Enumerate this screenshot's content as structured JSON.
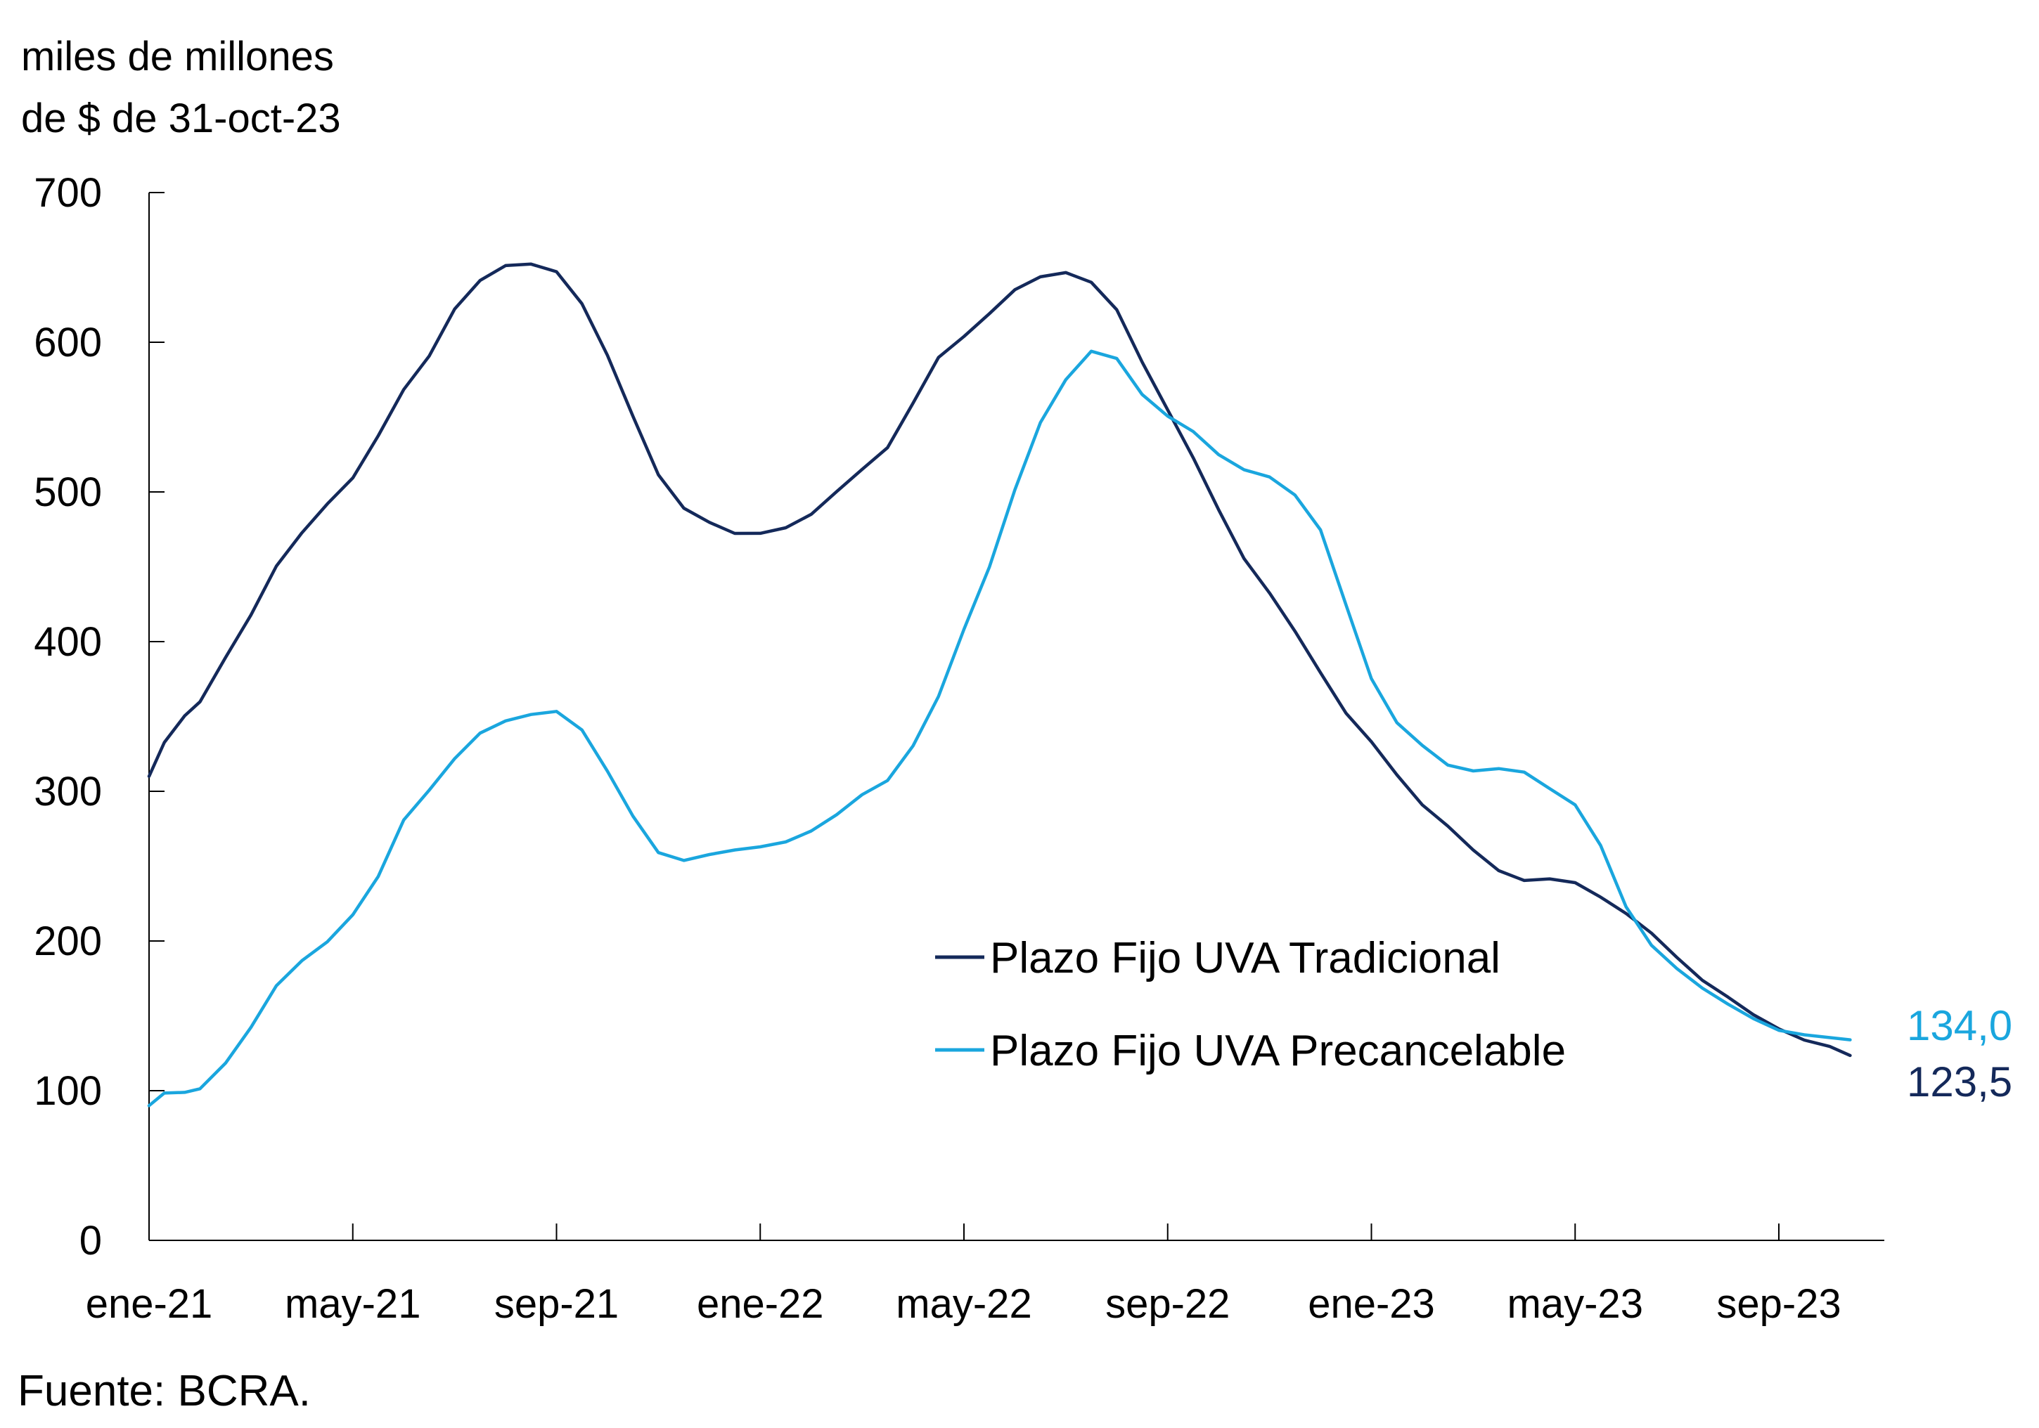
{
  "chart_data": {
    "type": "line",
    "title": "",
    "ylabel_line1": "miles de millones",
    "ylabel_line2": "de $ de 31-oct-23",
    "ylim": [
      0,
      700
    ],
    "yticks": [
      "0",
      "100",
      "200",
      "300",
      "400",
      "500",
      "600",
      "700"
    ],
    "x_tick_labels": [
      "ene-21",
      "may-21",
      "sep-21",
      "ene-22",
      "may-22",
      "sep-22",
      "ene-23",
      "may-23",
      "sep-23"
    ],
    "x_range_months": [
      0,
      34
    ],
    "legend_position": "center-right",
    "series": [
      {
        "name": "Plazo Fijo UVA Tradicional",
        "color": "#14295a",
        "end_label": "123,5",
        "points": [
          [
            0.0,
            310
          ],
          [
            0.3,
            330
          ],
          [
            0.7,
            348
          ],
          [
            1.0,
            360
          ],
          [
            1.5,
            392
          ],
          [
            2.0,
            420
          ],
          [
            2.5,
            450
          ],
          [
            3.0,
            470
          ],
          [
            3.5,
            490
          ],
          [
            4.0,
            510
          ],
          [
            4.5,
            540
          ],
          [
            5.0,
            570
          ],
          [
            5.5,
            590
          ],
          [
            6.0,
            620
          ],
          [
            6.5,
            640
          ],
          [
            7.0,
            652
          ],
          [
            7.5,
            654
          ],
          [
            8.0,
            648
          ],
          [
            8.5,
            625
          ],
          [
            9.0,
            590
          ],
          [
            9.5,
            550
          ],
          [
            10.0,
            512
          ],
          [
            10.5,
            490
          ],
          [
            11.0,
            480
          ],
          [
            11.5,
            472
          ],
          [
            12.0,
            472
          ],
          [
            12.5,
            476
          ],
          [
            13.0,
            485
          ],
          [
            13.5,
            500
          ],
          [
            14.0,
            515
          ],
          [
            14.5,
            530
          ],
          [
            15.0,
            560
          ],
          [
            15.5,
            590
          ],
          [
            16.0,
            603
          ],
          [
            16.5,
            618
          ],
          [
            17.0,
            635
          ],
          [
            17.5,
            645
          ],
          [
            18.0,
            648
          ],
          [
            18.5,
            640
          ],
          [
            19.0,
            620
          ],
          [
            19.5,
            585
          ],
          [
            20.0,
            555
          ],
          [
            20.5,
            525
          ],
          [
            21.0,
            490
          ],
          [
            21.5,
            455
          ],
          [
            22.0,
            430
          ],
          [
            22.5,
            405
          ],
          [
            23.0,
            380
          ],
          [
            23.5,
            355
          ],
          [
            24.0,
            335
          ],
          [
            24.5,
            310
          ],
          [
            25.0,
            288
          ],
          [
            25.5,
            275
          ],
          [
            26.0,
            262
          ],
          [
            26.5,
            250
          ],
          [
            27.0,
            242
          ],
          [
            27.5,
            240
          ],
          [
            28.0,
            236
          ],
          [
            28.5,
            228
          ],
          [
            29.0,
            220
          ],
          [
            29.5,
            208
          ],
          [
            30.0,
            190
          ],
          [
            30.5,
            172
          ],
          [
            31.0,
            160
          ],
          [
            31.5,
            150
          ],
          [
            32.0,
            143
          ],
          [
            32.5,
            136
          ],
          [
            33.0,
            130
          ],
          [
            33.4,
            123.5
          ]
        ]
      },
      {
        "name": "Plazo Fijo UVA Precancelable",
        "color": "#1aa6de",
        "end_label": "134,0",
        "points": [
          [
            0.0,
            90
          ],
          [
            0.3,
            97
          ],
          [
            0.7,
            99
          ],
          [
            1.0,
            103
          ],
          [
            1.5,
            120
          ],
          [
            2.0,
            142
          ],
          [
            2.5,
            168
          ],
          [
            3.0,
            185
          ],
          [
            3.5,
            200
          ],
          [
            4.0,
            220
          ],
          [
            4.5,
            245
          ],
          [
            5.0,
            280
          ],
          [
            5.5,
            298
          ],
          [
            6.0,
            320
          ],
          [
            6.5,
            340
          ],
          [
            7.0,
            350
          ],
          [
            7.5,
            353
          ],
          [
            8.0,
            352
          ],
          [
            8.5,
            338
          ],
          [
            9.0,
            312
          ],
          [
            9.5,
            285
          ],
          [
            10.0,
            262
          ],
          [
            10.5,
            255
          ],
          [
            11.0,
            256
          ],
          [
            11.5,
            258
          ],
          [
            12.0,
            262
          ],
          [
            12.5,
            268
          ],
          [
            13.0,
            276
          ],
          [
            13.5,
            285
          ],
          [
            14.0,
            296
          ],
          [
            14.5,
            305
          ],
          [
            15.0,
            330
          ],
          [
            15.5,
            365
          ],
          [
            16.0,
            410
          ],
          [
            16.5,
            450
          ],
          [
            17.0,
            500
          ],
          [
            17.5,
            545
          ],
          [
            18.0,
            575
          ],
          [
            18.5,
            595
          ],
          [
            19.0,
            590
          ],
          [
            19.5,
            565
          ],
          [
            20.0,
            550
          ],
          [
            20.5,
            540
          ],
          [
            21.0,
            525
          ],
          [
            21.5,
            515
          ],
          [
            22.0,
            510
          ],
          [
            22.5,
            498
          ],
          [
            23.0,
            475
          ],
          [
            23.5,
            425
          ],
          [
            24.0,
            375
          ],
          [
            24.5,
            345
          ],
          [
            25.0,
            330
          ],
          [
            25.5,
            318
          ],
          [
            26.0,
            315
          ],
          [
            26.5,
            316
          ],
          [
            27.0,
            312
          ],
          [
            27.5,
            300
          ],
          [
            28.0,
            290
          ],
          [
            28.5,
            265
          ],
          [
            29.0,
            225
          ],
          [
            29.5,
            198
          ],
          [
            30.0,
            180
          ],
          [
            30.5,
            166
          ],
          [
            31.0,
            157
          ],
          [
            31.5,
            150
          ],
          [
            32.0,
            143
          ],
          [
            32.5,
            138
          ],
          [
            33.4,
            134.0
          ]
        ]
      }
    ]
  },
  "source": "Fuente: BCRA."
}
